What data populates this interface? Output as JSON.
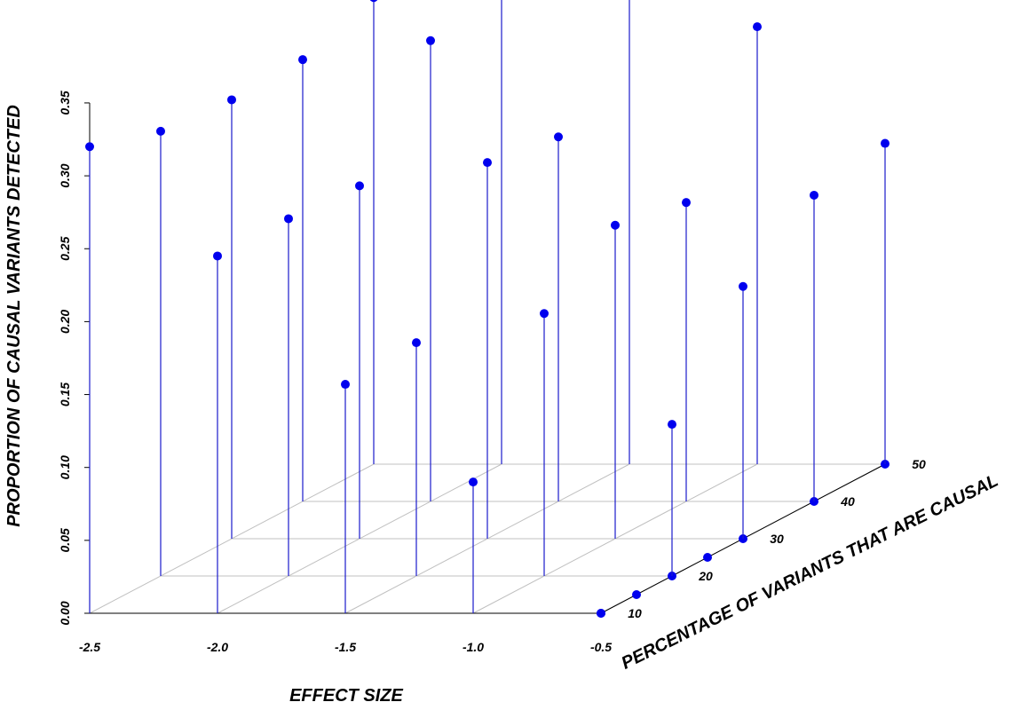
{
  "chart_data": {
    "type": "scatter",
    "subtype": "3d-stem",
    "xlabel": "EFFECT SIZE",
    "ylabel": "PERCENTAGE OF VARIANTS THAT ARE CAUSAL",
    "zlabel": "PROPORTION OF CAUSAL VARIANTS DETECTED",
    "x_ticks": [
      "-2.5",
      "-2.0",
      "-1.5",
      "-1.0",
      "-0.5"
    ],
    "y_ticks": [
      "10",
      "20",
      "30",
      "40",
      "50"
    ],
    "z_ticks": [
      "0.00",
      "0.05",
      "0.10",
      "0.15",
      "0.20",
      "0.25",
      "0.30",
      "0.35"
    ],
    "xlim": [
      -2.5,
      -0.5
    ],
    "ylim": [
      10,
      50
    ],
    "zlim": [
      0,
      0.35
    ],
    "grid": true,
    "point_color": "#0000ee",
    "stem_color": "#1a1acc",
    "grid_color": "#c0c0c0",
    "points": [
      {
        "x": -2.5,
        "y": 50,
        "z": 0.32
      },
      {
        "x": -2.0,
        "y": 50,
        "z": 0.328
      },
      {
        "x": -1.5,
        "y": 50,
        "z": 0.345
      },
      {
        "x": -1.0,
        "y": 50,
        "z": 0.3
      },
      {
        "x": -0.5,
        "y": 50,
        "z": 0.22
      },
      {
        "x": -2.5,
        "y": 40,
        "z": 0.303
      },
      {
        "x": -2.0,
        "y": 40,
        "z": 0.316
      },
      {
        "x": -1.5,
        "y": 40,
        "z": 0.25
      },
      {
        "x": -1.0,
        "y": 40,
        "z": 0.205
      },
      {
        "x": -0.5,
        "y": 40,
        "z": 0.21
      },
      {
        "x": -2.5,
        "y": 30,
        "z": 0.301
      },
      {
        "x": -2.0,
        "y": 30,
        "z": 0.242
      },
      {
        "x": -1.5,
        "y": 30,
        "z": 0.258
      },
      {
        "x": -1.0,
        "y": 30,
        "z": 0.215
      },
      {
        "x": -0.5,
        "y": 30,
        "z": 0.173
      },
      {
        "x": -2.5,
        "y": 20,
        "z": 0.305
      },
      {
        "x": -2.0,
        "y": 20,
        "z": 0.245
      },
      {
        "x": -1.5,
        "y": 20,
        "z": 0.16
      },
      {
        "x": -1.0,
        "y": 20,
        "z": 0.18
      },
      {
        "x": -0.5,
        "y": 20,
        "z": 0.104
      },
      {
        "x": -2.5,
        "y": 10,
        "z": 0.32
      },
      {
        "x": -2.0,
        "y": 10,
        "z": 0.245
      },
      {
        "x": -1.5,
        "y": 10,
        "z": 0.157
      },
      {
        "x": -1.0,
        "y": 10,
        "z": 0.09
      },
      {
        "x": -0.5,
        "y": 10,
        "z": 0.0
      }
    ]
  }
}
